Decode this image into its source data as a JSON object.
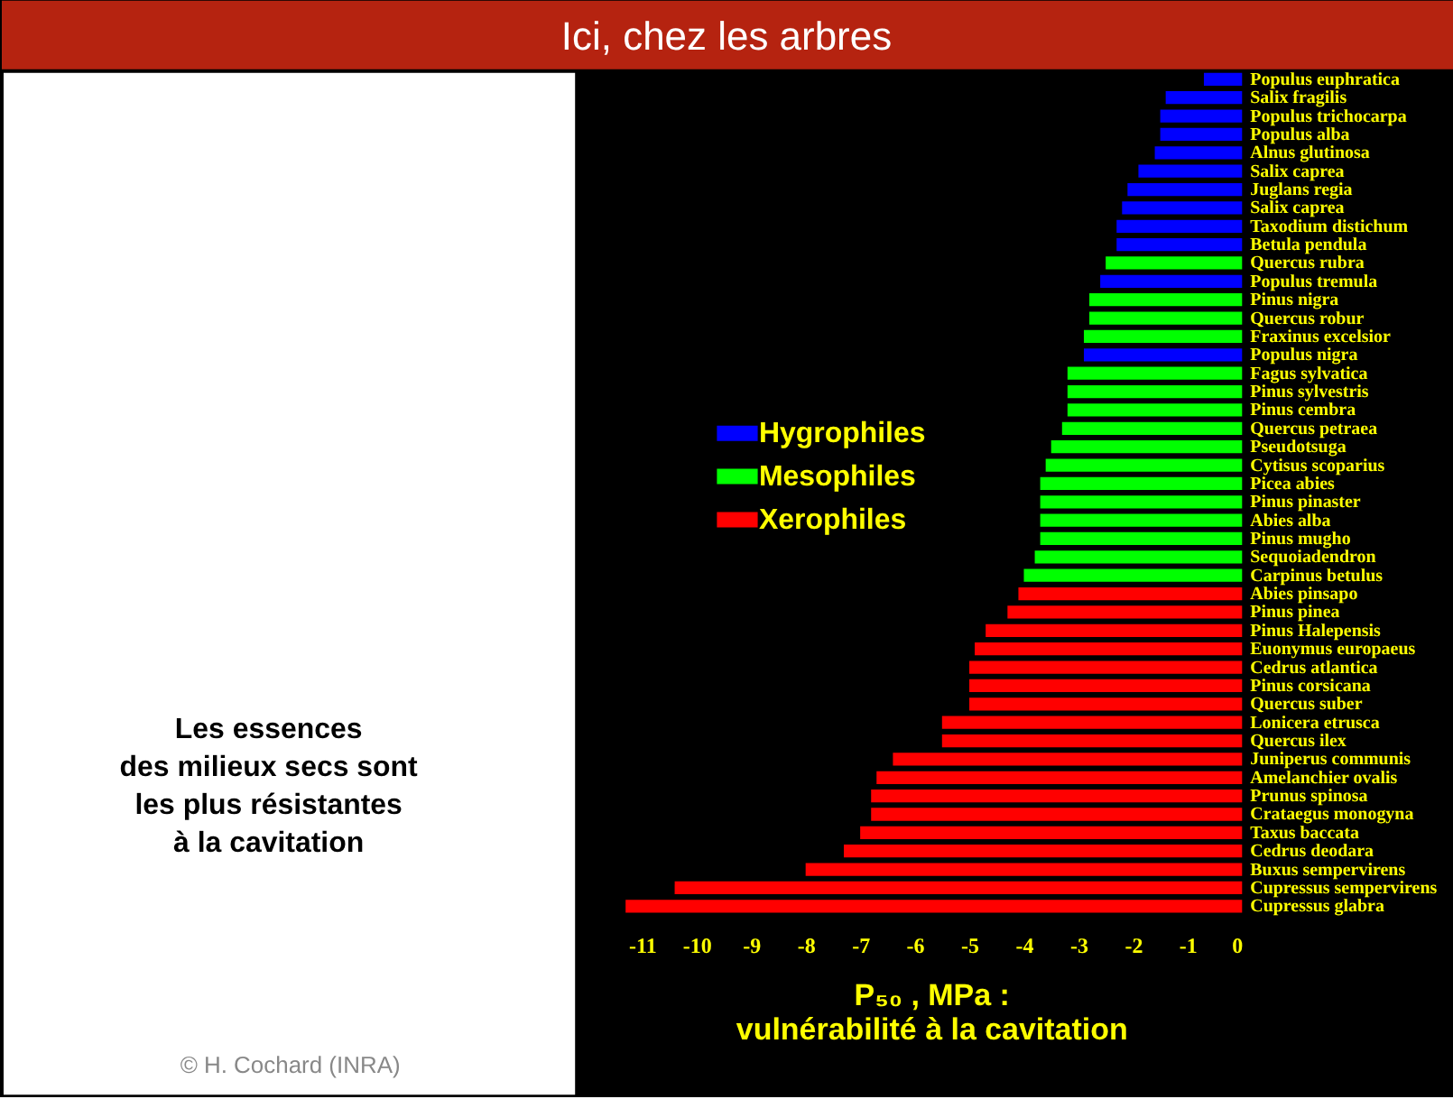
{
  "chart_data": {
    "type": "bar",
    "orientation": "horizontal",
    "title": "Ici, chez les arbres",
    "xlabel": "P₅₀ , MPa  :\nvulnérabilité à la cavitation",
    "categories": [
      "Populus euphratica",
      "Salix fragilis",
      "Populus trichocarpa",
      "Populus alba",
      "Alnus glutinosa",
      "Salix caprea",
      "Juglans regia",
      "Salix caprea",
      "Taxodium distichum",
      "Betula pendula",
      "Quercus rubra",
      "Populus tremula",
      "Pinus nigra",
      "Quercus robur",
      "Fraxinus excelsior",
      "Populus nigra",
      "Fagus sylvatica",
      "Pinus sylvestris",
      "Pinus cembra",
      "Quercus petraea",
      "Pseudotsuga",
      "Cytisus scoparius",
      "Picea abies",
      "Pinus pinaster",
      "Abies alba",
      "Pinus mugho",
      "Sequoiadendron",
      "Carpinus betulus",
      "Abies pinsapo",
      "Pinus pinea",
      "Pinus Halepensis",
      "Euonymus europaeus",
      "Cedrus atlantica",
      "Pinus corsicana",
      "Quercus suber",
      "Lonicera etrusca",
      "Quercus ilex",
      "Juniperus communis",
      "Amelanchier ovalis",
      "Prunus spinosa",
      "Crataegus monogyna",
      "Taxus baccata",
      "Cedrus deodara",
      "Buxus sempervirens",
      "Cupressus sempervirens",
      "Cupressus glabra"
    ],
    "series": [
      {
        "name": "Hygrophiles",
        "color": "#0000ff",
        "values": [
          -0.7,
          -1.4,
          -1.5,
          -1.5,
          -1.6,
          -1.9,
          -2.1,
          -2.2,
          -2.3,
          -2.3,
          null,
          -2.6,
          null,
          null,
          null,
          -2.9,
          null,
          null,
          null,
          null,
          null,
          null,
          null,
          null,
          null,
          null,
          null,
          null,
          null,
          null,
          null,
          null,
          null,
          null,
          null,
          null,
          null,
          null,
          null,
          null,
          null,
          null,
          null,
          null,
          null,
          null
        ]
      },
      {
        "name": "Mesophiles",
        "color": "#00ff00",
        "values": [
          null,
          null,
          null,
          null,
          null,
          null,
          null,
          null,
          null,
          null,
          -2.5,
          null,
          -2.8,
          -2.8,
          -2.9,
          null,
          -3.2,
          -3.2,
          -3.2,
          -3.3,
          -3.5,
          -3.6,
          -3.7,
          -3.7,
          -3.7,
          -3.7,
          -3.8,
          -4.0,
          null,
          null,
          null,
          null,
          null,
          null,
          null,
          null,
          null,
          null,
          null,
          null,
          null,
          null,
          null,
          null,
          null,
          null
        ]
      },
      {
        "name": "Xerophiles",
        "color": "#ff0000",
        "values": [
          null,
          null,
          null,
          null,
          null,
          null,
          null,
          null,
          null,
          null,
          null,
          null,
          null,
          null,
          null,
          null,
          null,
          null,
          null,
          null,
          null,
          null,
          null,
          null,
          null,
          null,
          null,
          null,
          -4.1,
          -4.3,
          -4.7,
          -4.9,
          -5.0,
          -5.0,
          -5.0,
          -5.5,
          -5.5,
          -6.4,
          -6.7,
          -6.8,
          -6.8,
          -7.0,
          -7.3,
          -8.0,
          -10.4,
          -11.3
        ]
      }
    ],
    "xlim": [
      -11.4,
      0
    ],
    "xticks": [
      -11,
      -10,
      -9,
      -8,
      -7,
      -6,
      -5,
      -4,
      -3,
      -2,
      -1,
      0
    ],
    "grid": false,
    "legend": "left",
    "annotations": [
      "Les essences\ndes milieux secs sont\nles plus résistantes\nà la cavitation",
      "© H. Cochard (INRA)"
    ]
  }
}
